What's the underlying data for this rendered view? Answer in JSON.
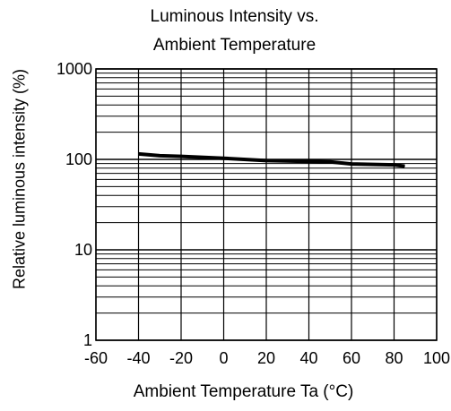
{
  "chart_data": {
    "type": "line",
    "title": "Luminous Intensity vs.",
    "subtitle": "Ambient Temperature",
    "xlabel": "Ambient Temperature Ta (°C)",
    "ylabel": "Relative luminous intensity  (%)",
    "xlim": [
      -60,
      100
    ],
    "ylim": [
      1,
      1000
    ],
    "yscale": "log",
    "xticks": [
      -60,
      -40,
      -20,
      0,
      20,
      40,
      60,
      80,
      100
    ],
    "yticks": [
      1,
      10,
      100,
      1000
    ],
    "grid": true,
    "series": [
      {
        "x": [
          -40,
          -30,
          -20,
          0,
          20,
          40,
          50,
          60,
          80,
          85
        ],
        "y": [
          115,
          110,
          108,
          103,
          97,
          95,
          94,
          89,
          87,
          84
        ]
      }
    ]
  }
}
